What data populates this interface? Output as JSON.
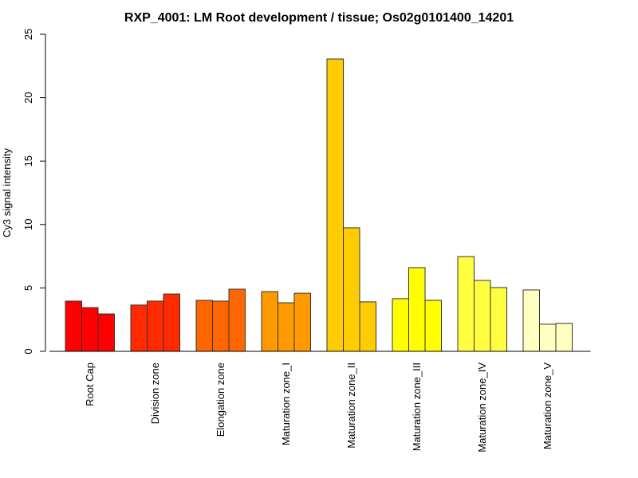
{
  "chart_data": {
    "type": "bar",
    "title": "RXP_4001: LM Root development / tissue; Os02g0101400_14201",
    "xlabel": "",
    "ylabel": "Cy3 signal intensity",
    "ylim": [
      0,
      25
    ],
    "yticks": [
      0,
      5,
      10,
      15,
      20,
      25
    ],
    "grid": false,
    "legend": "none",
    "categories": [
      "Root Cap",
      "Division zone",
      "Elongation zone",
      "Maturation zone_I",
      "Maturation zone_II",
      "Maturation zone_III",
      "Maturation zone_IV",
      "Maturation zone_V"
    ],
    "colors": [
      "#FF0000",
      "#FF2A00",
      "#FF6600",
      "#FF9900",
      "#FFCC00",
      "#FFFF00",
      "#FFFF40",
      "#FFFFC0"
    ],
    "replicates_per_group": 3,
    "values": [
      [
        3.96,
        3.45,
        2.95
      ],
      [
        3.65,
        3.96,
        4.52
      ],
      [
        4.02,
        3.96,
        4.9
      ],
      [
        4.71,
        3.83,
        4.58
      ],
      [
        23.05,
        9.74,
        3.9
      ],
      [
        4.15,
        6.6,
        4.02
      ],
      [
        7.47,
        5.59,
        5.03
      ],
      [
        4.84,
        2.14,
        2.2
      ]
    ]
  }
}
